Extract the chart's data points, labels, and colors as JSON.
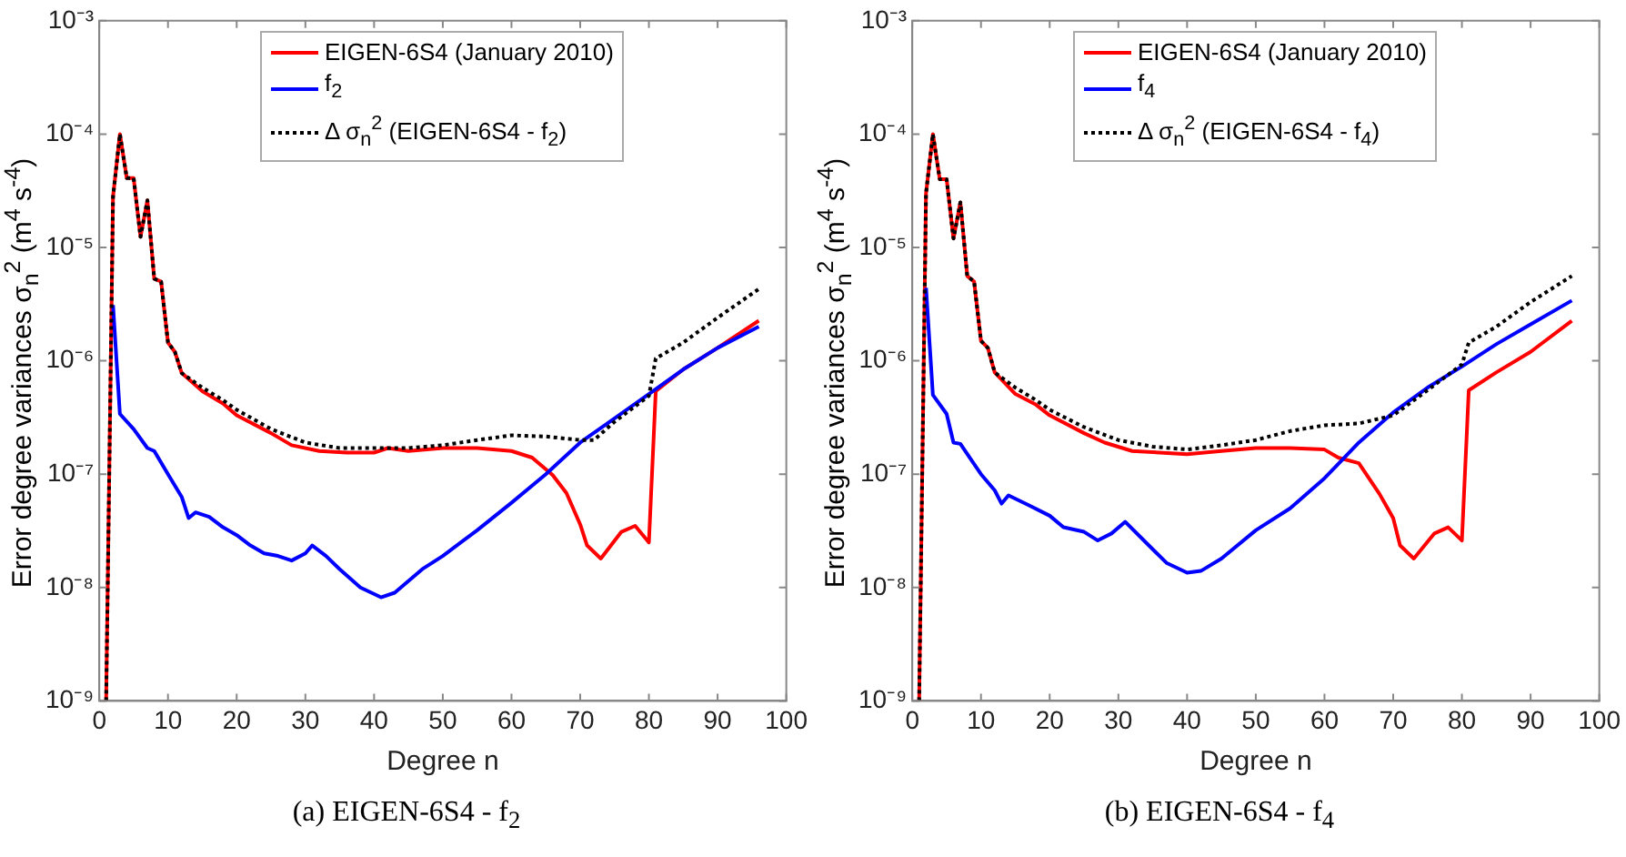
{
  "chart_data": [
    {
      "type": "line",
      "xlabel": "Degree n",
      "ylabel": "Error degree variances σ$_{n}$$^{2}$ (m$^{4}$ s$^{-4}$)",
      "log": "y",
      "grid": false,
      "legend": "top",
      "marker": "none",
      "line_style": "solid",
      "xlim": [
        0,
        100
      ],
      "xticks": [
        0,
        10,
        20,
        30,
        40,
        50,
        60,
        70,
        80,
        90,
        100
      ],
      "ylim": [
        1e-09,
        0.001
      ],
      "yticks": [
        {
          "value": 1e-09,
          "label": "10⁻⁹"
        },
        {
          "value": 1e-08,
          "label": "10⁻⁸"
        },
        {
          "value": 1e-07,
          "label": "10⁻⁷"
        },
        {
          "value": 1e-06,
          "label": "10⁻⁶"
        },
        {
          "value": 1e-05,
          "label": "10⁻⁵"
        },
        {
          "value": 0.0001,
          "label": "10⁻⁴"
        },
        {
          "value": 0.001,
          "label": "10⁻³"
        }
      ],
      "annotations": [
        "(a) EIGEN-6S4 - f$_{2}$"
      ],
      "series": [
        {
          "name": "EIGEN-6S4 (January 2010)",
          "color": "#ff0000",
          "x": [
            1,
            2,
            3,
            4,
            5,
            6,
            7,
            8,
            9,
            10,
            11,
            12,
            15,
            18,
            20,
            25,
            28,
            32,
            36,
            40,
            42,
            45,
            50,
            55,
            60,
            63,
            66,
            68,
            70,
            71,
            73,
            76,
            78,
            80,
            81,
            85,
            90,
            96
          ],
          "values": [
            1e-09,
            2.8e-05,
            0.0001,
            4.1e-05,
            4.1e-05,
            1.24e-05,
            2.6e-05,
            5.3e-06,
            5e-06,
            1.45e-06,
            1.2e-06,
            7.8e-07,
            5.4e-07,
            4.2e-07,
            3.3e-07,
            2.3e-07,
            1.8e-07,
            1.6e-07,
            1.55e-07,
            1.55e-07,
            1.7e-07,
            1.6e-07,
            1.7e-07,
            1.7e-07,
            1.6e-07,
            1.4e-07,
            9.8e-08,
            6.8e-08,
            3.6e-08,
            2.35e-08,
            1.8e-08,
            3.1e-08,
            3.5e-08,
            2.5e-08,
            5.4e-07,
            8.4e-07,
            1.3e-06,
            2.26e-06
          ]
        },
        {
          "name": "f$_{2}$",
          "color": "#0000ff",
          "x": [
            2,
            3,
            5,
            7,
            8,
            10,
            12,
            13,
            14,
            16,
            18,
            20,
            22,
            24,
            26,
            28,
            30,
            31,
            33,
            35,
            38,
            41,
            43,
            47,
            50,
            55,
            60,
            65,
            70,
            75,
            80,
            85,
            90,
            96
          ],
          "values": [
            3.1e-06,
            3.4e-07,
            2.5e-07,
            1.7e-07,
            1.6e-07,
            1e-07,
            6.3e-08,
            4.1e-08,
            4.6e-08,
            4.2e-08,
            3.4e-08,
            2.9e-08,
            2.35e-08,
            2e-08,
            1.9e-08,
            1.73e-08,
            2e-08,
            2.35e-08,
            1.9e-08,
            1.45e-08,
            1e-08,
            8.2e-09,
            9e-09,
            1.45e-08,
            1.9e-08,
            3.2e-08,
            5.6e-08,
            1e-07,
            1.9e-07,
            3.1e-07,
            5.1e-07,
            8.4e-07,
            1.3e-06,
            2e-06
          ]
        },
        {
          "name": "Δ σ$_{n}$$^{2}$ (EIGEN-6S4 - f$_{2}$)",
          "color": "#000000",
          "line_style": "dotted",
          "x": [
            1,
            2,
            3,
            4,
            5,
            6,
            7,
            8,
            9,
            10,
            11,
            12,
            15,
            18,
            20,
            25,
            30,
            35,
            40,
            45,
            50,
            55,
            60,
            65,
            70,
            72,
            75,
            80,
            81,
            85,
            90,
            96
          ],
          "values": [
            1e-09,
            2.8e-05,
            0.0001,
            4.1e-05,
            4.1e-05,
            1.24e-05,
            2.6e-05,
            5.3e-06,
            5e-06,
            1.45e-06,
            1.2e-06,
            7.8e-07,
            5.8e-07,
            4.5e-07,
            3.7e-07,
            2.5e-07,
            1.9e-07,
            1.7e-07,
            1.7e-07,
            1.7e-07,
            1.8e-07,
            2e-07,
            2.2e-07,
            2.15e-07,
            2e-07,
            2e-07,
            2.9e-07,
            4.9e-07,
            1.05e-06,
            1.45e-06,
            2.4e-06,
            4.3e-06
          ]
        }
      ]
    },
    {
      "type": "line",
      "xlabel": "Degree n",
      "ylabel": "Error degree variances σ$_{n}$$^{2}$ (m$^{4}$ s$^{-4}$)",
      "log": "y",
      "grid": false,
      "legend": "top",
      "marker": "none",
      "line_style": "solid",
      "xlim": [
        0,
        100
      ],
      "xticks": [
        0,
        10,
        20,
        30,
        40,
        50,
        60,
        70,
        80,
        90,
        100
      ],
      "ylim": [
        1e-09,
        0.001
      ],
      "yticks": [
        {
          "value": 1e-09,
          "label": "10⁻⁹"
        },
        {
          "value": 1e-08,
          "label": "10⁻⁸"
        },
        {
          "value": 1e-07,
          "label": "10⁻⁷"
        },
        {
          "value": 1e-06,
          "label": "10⁻⁶"
        },
        {
          "value": 1e-05,
          "label": "10⁻⁵"
        },
        {
          "value": 0.0001,
          "label": "10⁻⁴"
        },
        {
          "value": 0.001,
          "label": "10⁻³"
        }
      ],
      "annotations": [
        "(b) EIGEN-6S4 - f$_{4}$"
      ],
      "series": [
        {
          "name": "EIGEN-6S4 (January 2010)",
          "color": "#ff0000",
          "x": [
            1,
            2,
            3,
            4,
            5,
            6,
            7,
            8,
            9,
            10,
            11,
            12,
            15,
            18,
            20,
            25,
            28,
            32,
            36,
            40,
            45,
            50,
            55,
            60,
            62,
            65,
            68,
            70,
            71,
            73,
            76,
            78,
            80,
            81,
            85,
            90,
            96
          ],
          "values": [
            1e-09,
            3e-05,
            0.0001,
            4e-05,
            4e-05,
            1.2e-05,
            2.5e-05,
            5.6e-06,
            5e-06,
            1.5e-06,
            1.3e-06,
            7.9e-07,
            5.1e-07,
            4.1e-07,
            3.3e-07,
            2.3e-07,
            1.9e-07,
            1.6e-07,
            1.55e-07,
            1.5e-07,
            1.6e-07,
            1.7e-07,
            1.7e-07,
            1.65e-07,
            1.4e-07,
            1.25e-07,
            6.7e-08,
            4.1e-08,
            2.35e-08,
            1.8e-08,
            3e-08,
            3.4e-08,
            2.6e-08,
            5.5e-07,
            7.9e-07,
            1.2e-06,
            2.25e-06
          ]
        },
        {
          "name": "f$_{4}$",
          "color": "#0000ff",
          "x": [
            2,
            3,
            5,
            6,
            7,
            10,
            12,
            13,
            14,
            17,
            20,
            22,
            25,
            27,
            29,
            31,
            34,
            37,
            40,
            42,
            45,
            50,
            55,
            60,
            65,
            70,
            75,
            80,
            85,
            90,
            96
          ],
          "values": [
            4.4e-06,
            5e-07,
            3.4e-07,
            1.9e-07,
            1.85e-07,
            1e-07,
            7.2e-08,
            5.5e-08,
            6.5e-08,
            5.3e-08,
            4.3e-08,
            3.4e-08,
            3.1e-08,
            2.6e-08,
            3e-08,
            3.8e-08,
            2.5e-08,
            1.65e-08,
            1.35e-08,
            1.4e-08,
            1.8e-08,
            3.2e-08,
            5e-08,
            9.2e-08,
            1.9e-07,
            3.5e-07,
            5.8e-07,
            8.9e-07,
            1.4e-06,
            2.1e-06,
            3.4e-06
          ]
        },
        {
          "name": "Δ σ$_{n}$$^{2}$ (EIGEN-6S4 - f$_{4}$)",
          "color": "#000000",
          "line_style": "dotted",
          "x": [
            1,
            2,
            3,
            4,
            5,
            6,
            7,
            8,
            9,
            10,
            11,
            12,
            15,
            18,
            20,
            25,
            30,
            35,
            40,
            45,
            50,
            55,
            60,
            65,
            70,
            75,
            80,
            81,
            85,
            90,
            96
          ],
          "values": [
            1e-09,
            3e-05,
            0.0001,
            4e-05,
            4e-05,
            1.2e-05,
            2.5e-05,
            5.6e-06,
            5e-06,
            1.5e-06,
            1.3e-06,
            7.9e-07,
            5.8e-07,
            4.5e-07,
            3.7e-07,
            2.6e-07,
            2e-07,
            1.75e-07,
            1.65e-07,
            1.8e-07,
            2e-07,
            2.4e-07,
            2.7e-07,
            2.8e-07,
            3.3e-07,
            5.5e-07,
            9.3e-07,
            1.45e-06,
            2e-06,
            3.3e-06,
            5.6e-06
          ]
        }
      ]
    }
  ]
}
